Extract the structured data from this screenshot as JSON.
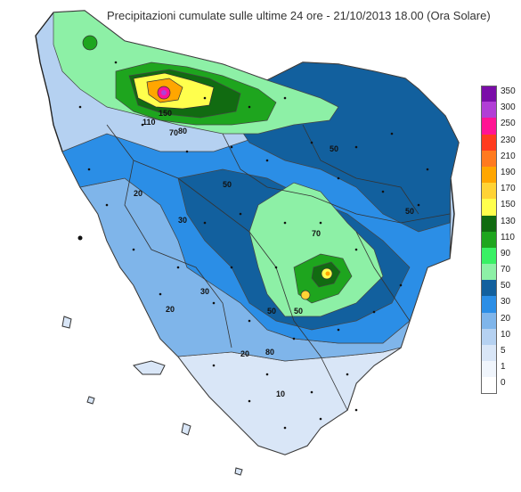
{
  "title": "Precipitazioni cumulate sulle ultime 24 ore - 21/10/2013 18.00 (Ora Solare)",
  "legend": [
    {
      "label": "350",
      "color": "#7a0ca8"
    },
    {
      "label": "300",
      "color": "#b13ed6"
    },
    {
      "label": "250",
      "color": "#ff1493"
    },
    {
      "label": "230",
      "color": "#ff3b1e"
    },
    {
      "label": "210",
      "color": "#ff7a1f"
    },
    {
      "label": "190",
      "color": "#ffa600"
    },
    {
      "label": "170",
      "color": "#ffd335"
    },
    {
      "label": "150",
      "color": "#ffff4d"
    },
    {
      "label": "130",
      "color": "#116b11"
    },
    {
      "label": "110",
      "color": "#1ea51e"
    },
    {
      "label": "90",
      "color": "#39f064"
    },
    {
      "label": "70",
      "color": "#8df0a6"
    },
    {
      "label": "50",
      "color": "#12609e"
    },
    {
      "label": "30",
      "color": "#2b8ee6"
    },
    {
      "label": "20",
      "color": "#7fb5ea"
    },
    {
      "label": "10",
      "color": "#b5d1f1"
    },
    {
      "label": "5",
      "color": "#d9e6f7"
    },
    {
      "label": "1",
      "color": "#f0f5fc"
    },
    {
      "label": "0",
      "color": "#ffffff"
    }
  ],
  "map_labels": {
    "l50a": "50",
    "l50b": "50",
    "l50c": "50",
    "l50d": "50",
    "l50e": "50",
    "l30a": "30",
    "l30b": "30",
    "l20a": "20",
    "l20b": "20",
    "l20c": "20",
    "l10a": "10",
    "l80a": "80",
    "l80b": "80",
    "l70a": "70",
    "l70b": "70",
    "l150": "150",
    "l110": "110"
  }
}
